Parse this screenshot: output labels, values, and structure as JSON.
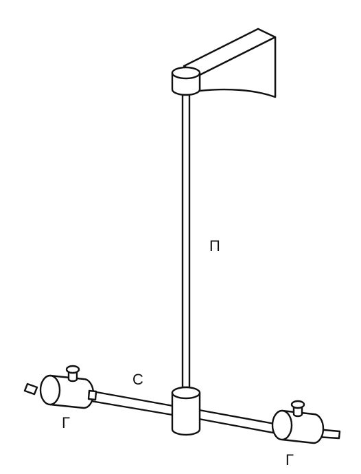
{
  "labels": {
    "thread": "П",
    "rod": "С",
    "weight_left": "Г",
    "weight_right": "Г"
  },
  "colors": {
    "stroke": "#111111",
    "fill": "#ffffff"
  }
}
